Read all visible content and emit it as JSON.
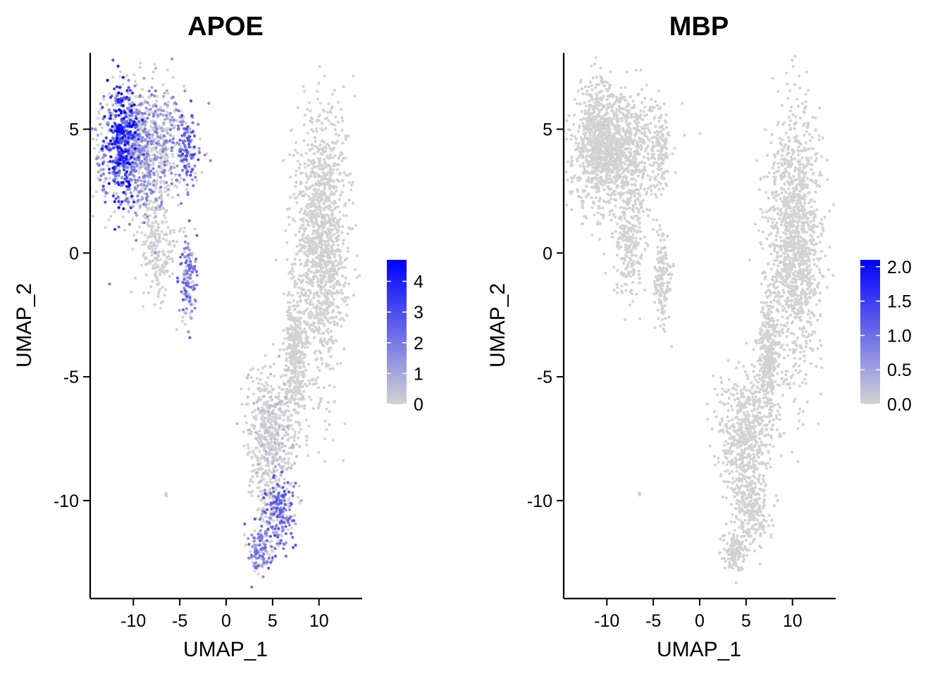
{
  "colors": {
    "low": "#D3D3D3",
    "high": "#0000FF",
    "axis": "#000000",
    "background": "#FFFFFF"
  },
  "chart_data": [
    {
      "type": "scatter",
      "title": "APOE",
      "xlabel": "UMAP_1",
      "ylabel": "UMAP_2",
      "xlim": [
        -14.5,
        14.5
      ],
      "ylim": [
        -13.9,
        8.0
      ],
      "xticks": [
        -10,
        -5,
        0,
        5,
        10
      ],
      "xtick_labels": [
        "-10",
        "-5",
        "0",
        "5",
        "10"
      ],
      "yticks": [
        5,
        0,
        -5,
        -10
      ],
      "ytick_labels": [
        "5",
        "0",
        "-5",
        "-10"
      ],
      "grid": false,
      "legend": {
        "placement": "right",
        "min": 0,
        "max": 4.7,
        "ticks": [
          0,
          1,
          2,
          3,
          4
        ],
        "tick_labels": [
          "0",
          "1",
          "2",
          "3",
          "4"
        ]
      },
      "clusters": [
        {
          "region": "upper-left",
          "center": [
            -9.0,
            4.2
          ],
          "spread": [
            2.3,
            1.3
          ],
          "count": 1100,
          "mean_expression": 1.4
        },
        {
          "region": "upper-left-hot",
          "center": [
            -11.2,
            4.6
          ],
          "spread": [
            0.9,
            1.2
          ],
          "count": 350,
          "mean_expression": 3.2
        },
        {
          "region": "upper-right-edge",
          "center": [
            -4.2,
            4.2
          ],
          "spread": [
            0.5,
            0.7
          ],
          "count": 120,
          "mean_expression": 2.3
        },
        {
          "region": "stem",
          "center": [
            -7.5,
            0.3
          ],
          "spread": [
            0.9,
            1.1
          ],
          "count": 220,
          "mean_expression": 0.25
        },
        {
          "region": "lower-blob",
          "center": [
            -4.1,
            -1.0
          ],
          "spread": [
            0.45,
            0.9
          ],
          "count": 160,
          "mean_expression": 1.8
        },
        {
          "region": "right-arm",
          "center": [
            10.3,
            0.5
          ],
          "spread": [
            1.4,
            2.6
          ],
          "count": 1300,
          "mean_expression": 0.15
        },
        {
          "region": "middle-stem",
          "center": [
            7.5,
            -4.2
          ],
          "spread": [
            0.6,
            1.3
          ],
          "count": 380,
          "mean_expression": 0.12
        },
        {
          "region": "lower-branch",
          "center": [
            4.8,
            -7.5
          ],
          "spread": [
            1.3,
            1.3
          ],
          "count": 550,
          "mean_expression": 0.5
        },
        {
          "region": "lower-tail",
          "center": [
            5.6,
            -10.5
          ],
          "spread": [
            0.9,
            0.7
          ],
          "count": 240,
          "mean_expression": 2.0
        },
        {
          "region": "bottom-tip",
          "center": [
            3.8,
            -12.0
          ],
          "spread": [
            0.7,
            0.45
          ],
          "count": 130,
          "mean_expression": 1.8
        },
        {
          "region": "outlier",
          "center": [
            -6.5,
            -9.7
          ],
          "spread": [
            0.05,
            0.05
          ],
          "count": 3,
          "mean_expression": 0.2
        }
      ]
    },
    {
      "type": "scatter",
      "title": "MBP",
      "xlabel": "UMAP_1",
      "ylabel": "UMAP_2",
      "xlim": [
        -14.5,
        14.5
      ],
      "ylim": [
        -13.9,
        8.0
      ],
      "xticks": [
        -10,
        -5,
        0,
        5,
        10
      ],
      "xtick_labels": [
        "-10",
        "-5",
        "0",
        "5",
        "10"
      ],
      "yticks": [
        5,
        0,
        -5,
        -10
      ],
      "ytick_labels": [
        "5",
        "0",
        "-5",
        "-10"
      ],
      "grid": false,
      "legend": {
        "placement": "right",
        "min": 0,
        "max": 2.1,
        "ticks": [
          0,
          0.5,
          1.0,
          1.5,
          2.0
        ],
        "tick_labels": [
          "0.0",
          "0.5",
          "1.0",
          "1.5",
          "2.0"
        ]
      },
      "clusters": [
        {
          "region": "upper-left",
          "center": [
            -9.0,
            4.2
          ],
          "spread": [
            2.3,
            1.3
          ],
          "count": 1100,
          "mean_expression": 0.05
        },
        {
          "region": "upper-left-hot",
          "center": [
            -11.2,
            4.6
          ],
          "spread": [
            0.9,
            1.2
          ],
          "count": 350,
          "mean_expression": 0.08
        },
        {
          "region": "upper-right-edge",
          "center": [
            -4.2,
            4.2
          ],
          "spread": [
            0.5,
            0.7
          ],
          "count": 120,
          "mean_expression": 0.05
        },
        {
          "region": "stem",
          "center": [
            -7.5,
            0.3
          ],
          "spread": [
            0.9,
            1.1
          ],
          "count": 220,
          "mean_expression": 0.04
        },
        {
          "region": "lower-blob",
          "center": [
            -4.1,
            -1.0
          ],
          "spread": [
            0.45,
            0.9
          ],
          "count": 160,
          "mean_expression": 0.06
        },
        {
          "region": "right-arm",
          "center": [
            10.3,
            0.5
          ],
          "spread": [
            1.4,
            2.6
          ],
          "count": 1300,
          "mean_expression": 0.02
        },
        {
          "region": "middle-stem",
          "center": [
            7.5,
            -4.2
          ],
          "spread": [
            0.6,
            1.3
          ],
          "count": 380,
          "mean_expression": 0.02
        },
        {
          "region": "lower-branch",
          "center": [
            4.8,
            -7.5
          ],
          "spread": [
            1.3,
            1.3
          ],
          "count": 550,
          "mean_expression": 0.02
        },
        {
          "region": "lower-tail",
          "center": [
            5.6,
            -10.5
          ],
          "spread": [
            0.9,
            0.7
          ],
          "count": 240,
          "mean_expression": 0.02
        },
        {
          "region": "bottom-tip",
          "center": [
            3.8,
            -12.0
          ],
          "spread": [
            0.7,
            0.45
          ],
          "count": 130,
          "mean_expression": 0.04
        },
        {
          "region": "outlier",
          "center": [
            -6.5,
            -9.7
          ],
          "spread": [
            0.05,
            0.05
          ],
          "count": 3,
          "mean_expression": 0.0
        }
      ]
    }
  ]
}
